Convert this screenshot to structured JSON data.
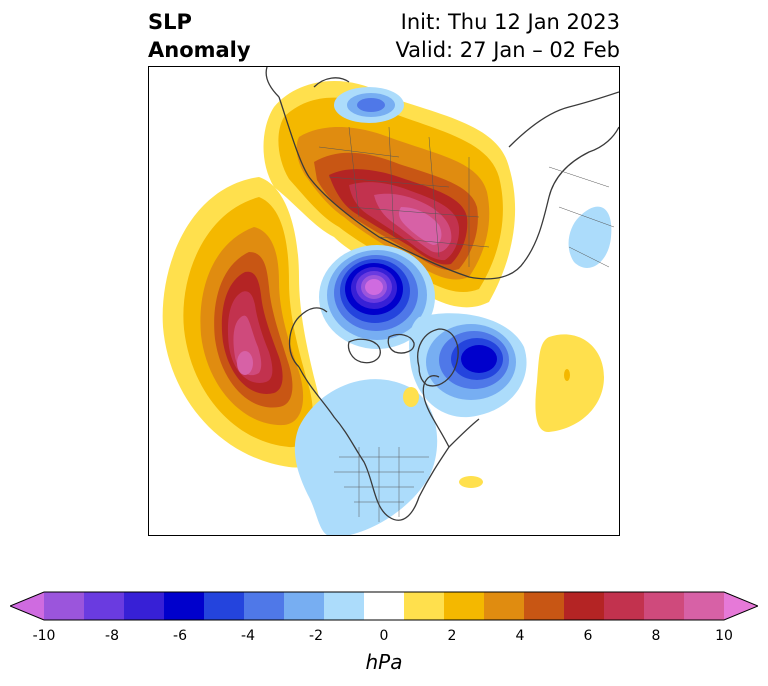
{
  "header": {
    "variable_line1": "SLP",
    "variable_line2": "Anomaly",
    "init": "Init: Thu 12 Jan 2023",
    "valid": "Valid: 27 Jan – 02 Feb"
  },
  "map": {
    "projection": "polar stereographic (North Pole)",
    "features": [
      {
        "name": "pacific-high",
        "sign": "positive",
        "peak": 9,
        "region": "North Pacific / Gulf of Alaska"
      },
      {
        "name": "siberian-high",
        "sign": "positive",
        "peak": 9,
        "region": "Siberia / Northern Eurasia"
      },
      {
        "name": "arctic-low",
        "sign": "negative",
        "peak": -10,
        "region": "Central Arctic"
      },
      {
        "name": "north-atlantic-low",
        "sign": "negative",
        "peak": -6,
        "region": "North Atlantic / Iceland"
      },
      {
        "name": "north-america-low",
        "sign": "negative",
        "peak": -2,
        "region": "Continental US"
      },
      {
        "name": "mid-atlantic-high",
        "sign": "positive",
        "peak": 2,
        "region": "Eastern Atlantic"
      }
    ]
  },
  "colorbar": {
    "unit": "hPa",
    "ticks": [
      "-10",
      "-8",
      "-6",
      "-4",
      "-2",
      "0",
      "2",
      "4",
      "6",
      "8",
      "10"
    ],
    "colors": [
      "#cf6be0",
      "#9b55dc",
      "#6a3be0",
      "#3720d6",
      "#0000cc",
      "#2444dd",
      "#4f78e8",
      "#77aef2",
      "#acdcfb",
      "#ffffff",
      "#ffe04d",
      "#f4b800",
      "#e08c10",
      "#c85614",
      "#b42424",
      "#c2324e",
      "#cf4a7c",
      "#d761a6",
      "#e679d8"
    ]
  }
}
